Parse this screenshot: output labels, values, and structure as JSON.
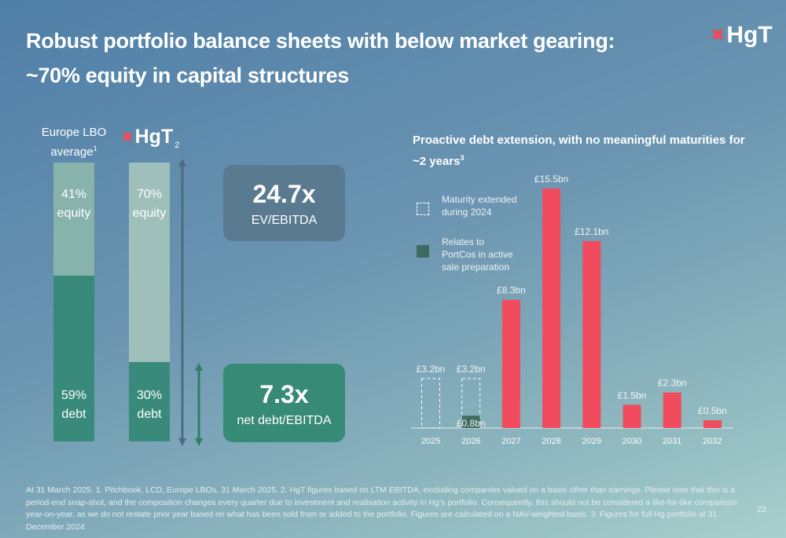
{
  "header": {
    "title": "Robust portfolio balance sheets with below market gearing: ~70% equity in capital structures",
    "logo_text": "HgT"
  },
  "capital_structure": {
    "europe_lbo": {
      "heading": "Europe LBO average",
      "footnote_mark": "1",
      "equity_label": "41%\nequity",
      "debt_label": "59%\ndebt",
      "equity_pct": 41,
      "debt_pct": 59
    },
    "hgt": {
      "logo_text": "HgT",
      "footnote_mark": "2",
      "equity_label": "70%\nequity",
      "debt_label": "30%\ndebt",
      "equity_pct": 70,
      "debt_pct": 30
    }
  },
  "metrics": {
    "ev_value": "24.7x",
    "ev_label": "EV/EBITDA",
    "nd_value": "7.3x",
    "nd_label": "net debt/EBITDA"
  },
  "colors": {
    "title_text": "#ffffff",
    "equity_lbo": "#88b2ac",
    "equity_hgt": "#9ebfba",
    "debt": "#3a8a7b",
    "bar_red": "#f14b5e",
    "portco_sale": "#3f6b5e",
    "logo_x": "#ee4a5a"
  },
  "chart_data": {
    "type": "bar",
    "title": "Proactive debt extension, with no meaningful maturities for ~2 years",
    "title_footnote_mark": "3",
    "categories": [
      "2025",
      "2026",
      "2027",
      "2028",
      "2029",
      "2030",
      "2031",
      "2032"
    ],
    "series": [
      {
        "name": "Maturity extended during 2024",
        "style": "dashed-outline",
        "values": [
          3.2,
          3.2,
          0,
          0,
          0,
          0,
          0,
          0
        ]
      },
      {
        "name": "Relates to PortCos in active sale preparation",
        "style": "solid-dark-green",
        "values": [
          0,
          0.8,
          0,
          0,
          0,
          0,
          0,
          0
        ]
      },
      {
        "name": "",
        "style": "solid-red",
        "values": [
          0,
          0,
          8.3,
          15.5,
          12.1,
          1.5,
          2.3,
          0.5
        ]
      }
    ],
    "data_labels": [
      "£3.2bn",
      "£3.2bn",
      "£0.8bn",
      "£8.3bn",
      "£15.5bn",
      "£12.1bn",
      "£1.5bn",
      "£2.3bn",
      "£0.5bn"
    ],
    "data_label_anchor": [
      {
        "category": "2025",
        "series": 0
      },
      {
        "category": "2026",
        "series": 0
      },
      {
        "category": "2026",
        "series": 1
      },
      {
        "category": "2027",
        "series": 2
      },
      {
        "category": "2028",
        "series": 2
      },
      {
        "category": "2029",
        "series": 2
      },
      {
        "category": "2030",
        "series": 2
      },
      {
        "category": "2031",
        "series": 2
      },
      {
        "category": "2032",
        "series": 2
      }
    ],
    "legend_position": "top-left",
    "ylim": [
      0,
      16
    ],
    "grid": false,
    "y_axis_visible": false
  },
  "footnote": "At 31 March 2025. 1. Pitchbook, LCD, Europe LBOs, 31 March 2025. 2. HgT figures based on LTM EBITDA, excluding companies valued on a basis other than earnings. Please note that this is a period-end snap-shot, and the composition changes every quarter due to investment and realisation activity in Hg’s portfolio. Consequently, this should not be considered a like-for-like comparison year-on-year, as we do not restate prior year based on what has been sold from or added to the portfolio. Figures are calculated on a NAV-weighted basis. 3. Figures for full Hg portfolio at 31 December 2024",
  "page_number": "22"
}
